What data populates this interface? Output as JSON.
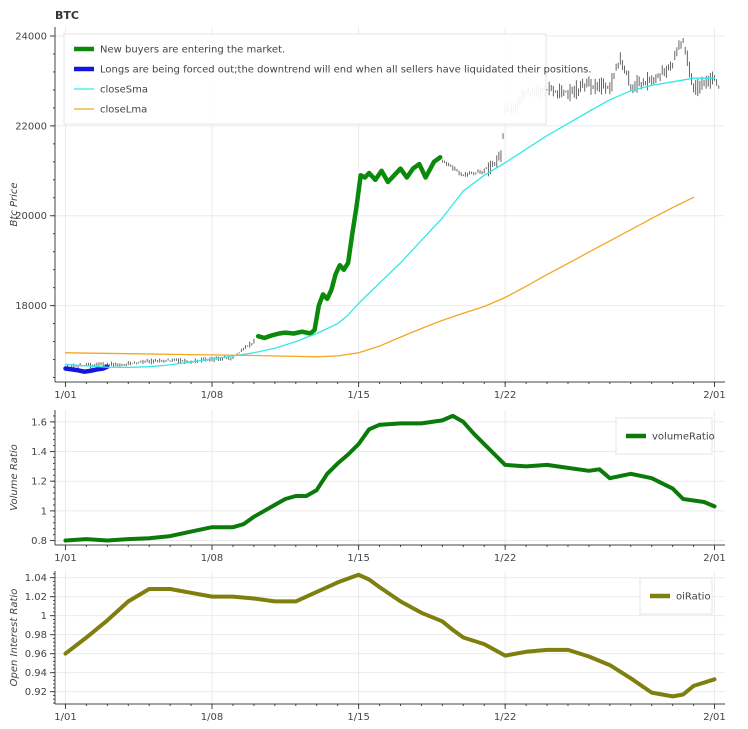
{
  "chart_data": [
    {
      "type": "line",
      "title": "BTC",
      "ylabel": "Btc Price",
      "x_tick_labels": [
        "1/01",
        "1/08",
        "1/15",
        "1/22",
        "2/01"
      ],
      "x_tick_days": [
        0,
        7,
        14,
        21,
        31
      ],
      "xlim_days": [
        -0.5,
        31.5
      ],
      "ylim": [
        16300,
        24200
      ],
      "y_ticks": [
        18000,
        20000,
        22000,
        24000
      ],
      "grid": true,
      "legend_position": "top-left",
      "series": [
        {
          "name": "New buyers are entering the market.",
          "color": "#0a8a0a",
          "style": "thick",
          "segments": [
            [
              [
                9.2,
                17320
              ],
              [
                9.5,
                17280
              ],
              [
                9.8,
                17330
              ],
              [
                10.2,
                17380
              ],
              [
                10.5,
                17400
              ],
              [
                10.9,
                17380
              ],
              [
                11.3,
                17420
              ],
              [
                11.7,
                17380
              ],
              [
                11.9,
                17460
              ],
              [
                12.1,
                18000
              ],
              [
                12.3,
                18250
              ],
              [
                12.5,
                18150
              ],
              [
                12.7,
                18350
              ],
              [
                12.9,
                18700
              ],
              [
                13.1,
                18900
              ],
              [
                13.3,
                18800
              ],
              [
                13.5,
                18950
              ],
              [
                13.7,
                19600
              ],
              [
                13.9,
                20200
              ],
              [
                14.1,
                20900
              ],
              [
                14.3,
                20850
              ],
              [
                14.5,
                20950
              ],
              [
                14.8,
                20800
              ],
              [
                15.1,
                21000
              ],
              [
                15.4,
                20750
              ],
              [
                15.7,
                20900
              ],
              [
                16.0,
                21050
              ],
              [
                16.3,
                20850
              ],
              [
                16.6,
                21050
              ],
              [
                16.9,
                21150
              ],
              [
                17.2,
                20850
              ],
              [
                17.6,
                21200
              ],
              [
                17.9,
                21300
              ]
            ]
          ]
        },
        {
          "name": "Longs are being forced out;the downtrend will end when all sellers have liquidated their positions.",
          "color": "#1515e0",
          "style": "thick",
          "segments": [
            [
              [
                0,
                16600
              ],
              [
                0.3,
                16580
              ],
              [
                0.6,
                16560
              ],
              [
                0.9,
                16530
              ],
              [
                1.2,
                16550
              ],
              [
                1.5,
                16580
              ],
              [
                1.8,
                16600
              ],
              [
                2.0,
                16640
              ]
            ]
          ]
        },
        {
          "name": "closeSma",
          "color": "#34e8e8",
          "style": "thin",
          "points": [
            [
              0,
              16690
            ],
            [
              1,
              16660
            ],
            [
              2,
              16630
            ],
            [
              3,
              16625
            ],
            [
              4,
              16640
            ],
            [
              5,
              16680
            ],
            [
              6,
              16750
            ],
            [
              7,
              16810
            ],
            [
              8,
              16880
            ],
            [
              9,
              16950
            ],
            [
              10,
              17050
            ],
            [
              11,
              17200
            ],
            [
              12,
              17380
            ],
            [
              13,
              17600
            ],
            [
              13.5,
              17790
            ],
            [
              14,
              18050
            ],
            [
              15,
              18500
            ],
            [
              16,
              18950
            ],
            [
              17,
              19450
            ],
            [
              18,
              19950
            ],
            [
              19,
              20550
            ],
            [
              20,
              20900
            ],
            [
              21,
              21180
            ],
            [
              22,
              21480
            ],
            [
              23,
              21780
            ],
            [
              24,
              22050
            ],
            [
              25,
              22320
            ],
            [
              26,
              22580
            ],
            [
              27,
              22780
            ],
            [
              28,
              22900
            ],
            [
              29,
              22980
            ],
            [
              30,
              23060
            ],
            [
              31,
              23060
            ]
          ]
        },
        {
          "name": "closeLma",
          "color": "#f5a623",
          "style": "thin",
          "points": [
            [
              0,
              16950
            ],
            [
              3,
              16930
            ],
            [
              6,
              16910
            ],
            [
              9,
              16890
            ],
            [
              11,
              16870
            ],
            [
              12,
              16860
            ],
            [
              13,
              16880
            ],
            [
              14,
              16950
            ],
            [
              15,
              17100
            ],
            [
              16,
              17300
            ],
            [
              17,
              17490
            ],
            [
              18,
              17670
            ],
            [
              19,
              17830
            ],
            [
              20,
              17980
            ],
            [
              21,
              18180
            ],
            [
              22,
              18430
            ],
            [
              23,
              18690
            ],
            [
              24,
              18940
            ],
            [
              25,
              19190
            ],
            [
              26,
              19440
            ],
            [
              27,
              19690
            ],
            [
              28,
              19940
            ],
            [
              29,
              20180
            ],
            [
              30,
              20410
            ]
          ]
        }
      ]
    },
    {
      "type": "line",
      "ylabel": "Volume Ratio",
      "x_tick_labels": [
        "1/01",
        "1/08",
        "1/15",
        "1/22",
        "2/01"
      ],
      "x_tick_days": [
        0,
        7,
        14,
        21,
        31
      ],
      "xlim_days": [
        -0.5,
        31.5
      ],
      "ylim": [
        0.77,
        1.68
      ],
      "y_ticks": [
        0.8,
        1,
        1.2,
        1.4,
        1.6
      ],
      "y_tick_labels": [
        "0.8",
        "1",
        "1.2",
        "1.4",
        "1.6"
      ],
      "grid": true,
      "legend_position": "top-right",
      "series": [
        {
          "name": "volumeRatio",
          "color": "#0a7a0a",
          "points": [
            [
              0,
              0.8
            ],
            [
              1,
              0.81
            ],
            [
              2,
              0.8
            ],
            [
              3,
              0.81
            ],
            [
              4,
              0.815
            ],
            [
              5,
              0.83
            ],
            [
              6,
              0.86
            ],
            [
              7,
              0.89
            ],
            [
              8,
              0.89
            ],
            [
              8.5,
              0.91
            ],
            [
              9,
              0.96
            ],
            [
              10,
              1.04
            ],
            [
              10.5,
              1.08
            ],
            [
              11,
              1.1
            ],
            [
              11.5,
              1.1
            ],
            [
              12,
              1.14
            ],
            [
              12.5,
              1.25
            ],
            [
              13,
              1.32
            ],
            [
              13.5,
              1.38
            ],
            [
              14,
              1.45
            ],
            [
              14.5,
              1.55
            ],
            [
              15,
              1.58
            ],
            [
              16,
              1.59
            ],
            [
              17,
              1.59
            ],
            [
              18,
              1.61
            ],
            [
              18.5,
              1.64
            ],
            [
              19,
              1.6
            ],
            [
              19.5,
              1.52
            ],
            [
              20,
              1.45
            ],
            [
              20.5,
              1.38
            ],
            [
              21,
              1.31
            ],
            [
              22,
              1.3
            ],
            [
              23,
              1.31
            ],
            [
              24,
              1.29
            ],
            [
              25,
              1.27
            ],
            [
              25.5,
              1.28
            ],
            [
              26,
              1.22
            ],
            [
              27,
              1.25
            ],
            [
              28,
              1.22
            ],
            [
              29,
              1.15
            ],
            [
              29.5,
              1.08
            ],
            [
              30,
              1.07
            ],
            [
              30.5,
              1.06
            ],
            [
              31,
              1.03
            ]
          ]
        }
      ]
    },
    {
      "type": "line",
      "ylabel": "Open Interest Ratio",
      "x_tick_labels": [
        "1/01",
        "1/08",
        "1/15",
        "1/22",
        "2/01"
      ],
      "x_tick_days": [
        0,
        7,
        14,
        21,
        31
      ],
      "xlim_days": [
        -0.5,
        31.5
      ],
      "ylim": [
        0.907,
        1.047
      ],
      "y_ticks": [
        0.92,
        0.94,
        0.96,
        0.98,
        1,
        1.02,
        1.04
      ],
      "y_tick_labels": [
        "0.92",
        "0.94",
        "0.96",
        "0.98",
        "1",
        "1.02",
        "1.04"
      ],
      "grid": true,
      "legend_position": "top-right",
      "series": [
        {
          "name": "oiRatio",
          "color": "#7f7f10",
          "points": [
            [
              0,
              0.96
            ],
            [
              1,
              0.977
            ],
            [
              2,
              0.995
            ],
            [
              3,
              1.015
            ],
            [
              4,
              1.028
            ],
            [
              5,
              1.028
            ],
            [
              6,
              1.024
            ],
            [
              7,
              1.02
            ],
            [
              8,
              1.02
            ],
            [
              9,
              1.018
            ],
            [
              10,
              1.015
            ],
            [
              11,
              1.015
            ],
            [
              12,
              1.025
            ],
            [
              13,
              1.035
            ],
            [
              14,
              1.043
            ],
            [
              14.5,
              1.038
            ],
            [
              15,
              1.03
            ],
            [
              16,
              1.015
            ],
            [
              17,
              1.003
            ],
            [
              18,
              0.994
            ],
            [
              18.5,
              0.985
            ],
            [
              19,
              0.977
            ],
            [
              20,
              0.97
            ],
            [
              21,
              0.958
            ],
            [
              22,
              0.962
            ],
            [
              23,
              0.964
            ],
            [
              24,
              0.964
            ],
            [
              25,
              0.957
            ],
            [
              26,
              0.948
            ],
            [
              27,
              0.934
            ],
            [
              28,
              0.919
            ],
            [
              29,
              0.915
            ],
            [
              29.5,
              0.917
            ],
            [
              30,
              0.926
            ],
            [
              31,
              0.933
            ]
          ]
        }
      ]
    }
  ]
}
